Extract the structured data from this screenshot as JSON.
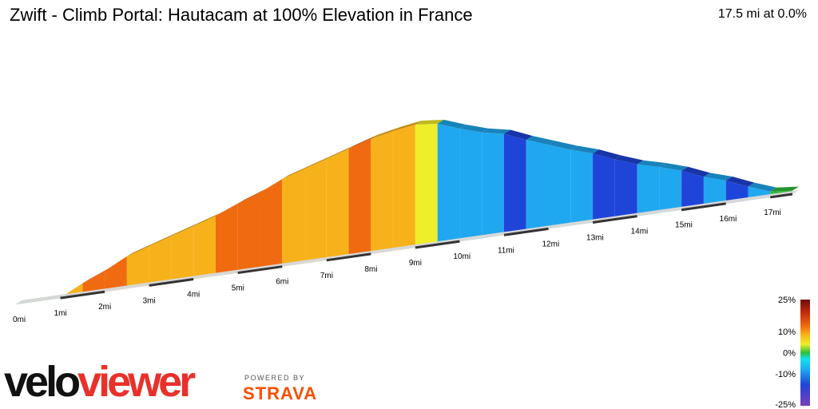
{
  "header": {
    "title": "Zwift - Climb Portal: Hautacam at 100% Elevation in France",
    "summary": "17.5 mi at 0.0%"
  },
  "brand": {
    "velo": "velo",
    "viewer": "viewer",
    "powered_by": "POWERED BY",
    "strava": "STRAVA"
  },
  "legend": {
    "labels": [
      "25%",
      "10%",
      "0%",
      "-10%",
      "-25%"
    ],
    "values": [
      25,
      10,
      0,
      -10,
      -25
    ]
  },
  "colors": {
    "down_steep": "#7b3fb8",
    "down_hard": "#1f44d8",
    "down": "#1fa8f0",
    "down_slight": "#13e0ee",
    "flat": "#2fbd3c",
    "up_slight": "#eeee2a",
    "up": "#f7b21b",
    "up_hard": "#f06a10",
    "up_steep": "#c02a0e",
    "up_max": "#6d0d0d"
  },
  "chart_data": {
    "type": "area",
    "title": "Zwift - Climb Portal: Hautacam at 100% Elevation in France",
    "xlabel": "",
    "ylabel": "",
    "x_unit": "mi",
    "xlim": [
      0,
      17.5
    ],
    "x_ticks": [
      "0mi",
      "1mi",
      "2mi",
      "3mi",
      "4mi",
      "5mi",
      "6mi",
      "7mi",
      "8mi",
      "9mi",
      "10mi",
      "11mi",
      "12mi",
      "13mi",
      "14mi",
      "15mi",
      "16mi",
      "17mi"
    ],
    "distance_mi": [
      0,
      1,
      1.5,
      2,
      2.5,
      3,
      3.5,
      4,
      4.5,
      5,
      5.5,
      6,
      6.5,
      7,
      7.5,
      8,
      8.5,
      9,
      9.5,
      10,
      10.5,
      11,
      11.5,
      12,
      12.5,
      13,
      13.5,
      14,
      14.5,
      15,
      15.5,
      16,
      16.5,
      17,
      17.5
    ],
    "elevation_rel": [
      0,
      0,
      0.1,
      0.18,
      0.28,
      0.34,
      0.4,
      0.46,
      0.52,
      0.6,
      0.67,
      0.76,
      0.82,
      0.88,
      0.94,
      1.0,
      1.04,
      1.07,
      1.05,
      0.98,
      0.92,
      0.88,
      0.8,
      0.73,
      0.66,
      0.6,
      0.52,
      0.45,
      0.4,
      0.34,
      0.26,
      0.2,
      0.12,
      0.05,
      0.03
    ],
    "segment_grade_pct": [
      0,
      5,
      7,
      7,
      5,
      5,
      5,
      6,
      7,
      7,
      8,
      6,
      6,
      6,
      8,
      5,
      5,
      4,
      -6,
      -5,
      -4,
      -8,
      -6,
      -6,
      -6,
      -8,
      -7,
      -5,
      -5,
      -8,
      -6,
      -8,
      -6,
      0
    ],
    "color_scale": {
      "min": -25,
      "max": 25,
      "stops": [
        -25,
        -10,
        0,
        10,
        25
      ]
    },
    "grid": false,
    "legend_position": "bottom-right"
  }
}
